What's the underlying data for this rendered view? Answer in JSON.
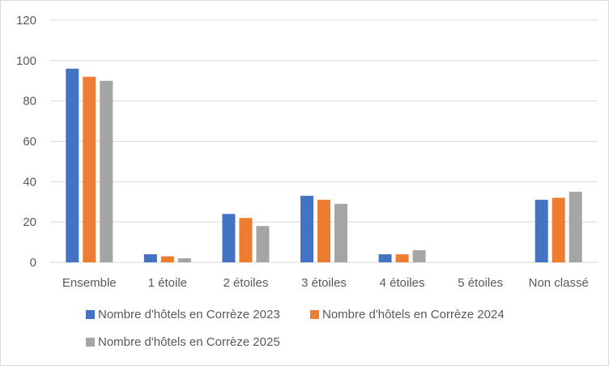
{
  "chart_data": {
    "type": "bar",
    "title": "",
    "xlabel": "",
    "ylabel": "",
    "categories": [
      "Ensemble",
      "1 étoile",
      "2 étoiles",
      "3 étoiles",
      "4 étoiles",
      "5 étoiles",
      "Non classé"
    ],
    "series": [
      {
        "name": "Nombre d'hôtels en Corrèze 2023",
        "color": "#4472c4",
        "values": [
          96,
          4,
          24,
          33,
          4,
          0,
          31
        ]
      },
      {
        "name": "Nombre d'hôtels en Corrèze 2024",
        "color": "#ed7d31",
        "values": [
          92,
          3,
          22,
          31,
          4,
          0,
          32
        ]
      },
      {
        "name": "Nombre d'hôtels en Corrèze 2025",
        "color": "#a5a5a5",
        "values": [
          90,
          2,
          18,
          29,
          6,
          0,
          35
        ]
      }
    ],
    "ylim": [
      0,
      120
    ],
    "yticks": [
      0,
      20,
      40,
      60,
      80,
      100,
      120
    ],
    "grid": true,
    "legend_position": "bottom"
  }
}
